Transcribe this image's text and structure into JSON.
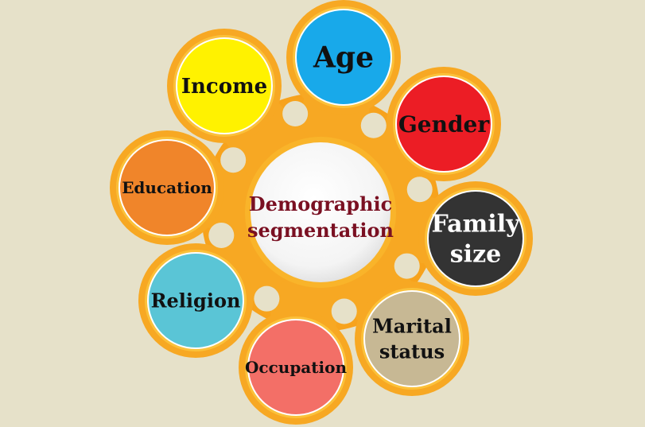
{
  "center": {
    "line1": "Demographic",
    "line2": "segmentation",
    "fill": "#ffffff",
    "text_color": "#7a1022"
  },
  "ring_color": "#f7a823",
  "ring_color_light": "#fbc13a",
  "background": "#e6e1c9",
  "nodes": [
    {
      "id": "age",
      "lines": [
        "Age"
      ],
      "fill": "#18a9ea",
      "text_color": "#111111"
    },
    {
      "id": "gender",
      "lines": [
        "Gender"
      ],
      "fill": "#ec1d25",
      "text_color": "#111111"
    },
    {
      "id": "family-size",
      "lines": [
        "Family",
        "size"
      ],
      "fill": "#333333",
      "text_color": "#ffffff"
    },
    {
      "id": "marital-status",
      "lines": [
        "Marital",
        "status"
      ],
      "fill": "#c7b894",
      "text_color": "#111111"
    },
    {
      "id": "occupation",
      "lines": [
        "Occupation"
      ],
      "fill": "#f36f67",
      "text_color": "#111111"
    },
    {
      "id": "religion",
      "lines": [
        "Religion"
      ],
      "fill": "#5ac5d6",
      "text_color": "#111111"
    },
    {
      "id": "education",
      "lines": [
        "Education"
      ],
      "fill": "#f0852a",
      "text_color": "#111111"
    },
    {
      "id": "income",
      "lines": [
        "Income"
      ],
      "fill": "#fff200",
      "text_color": "#111111"
    }
  ]
}
